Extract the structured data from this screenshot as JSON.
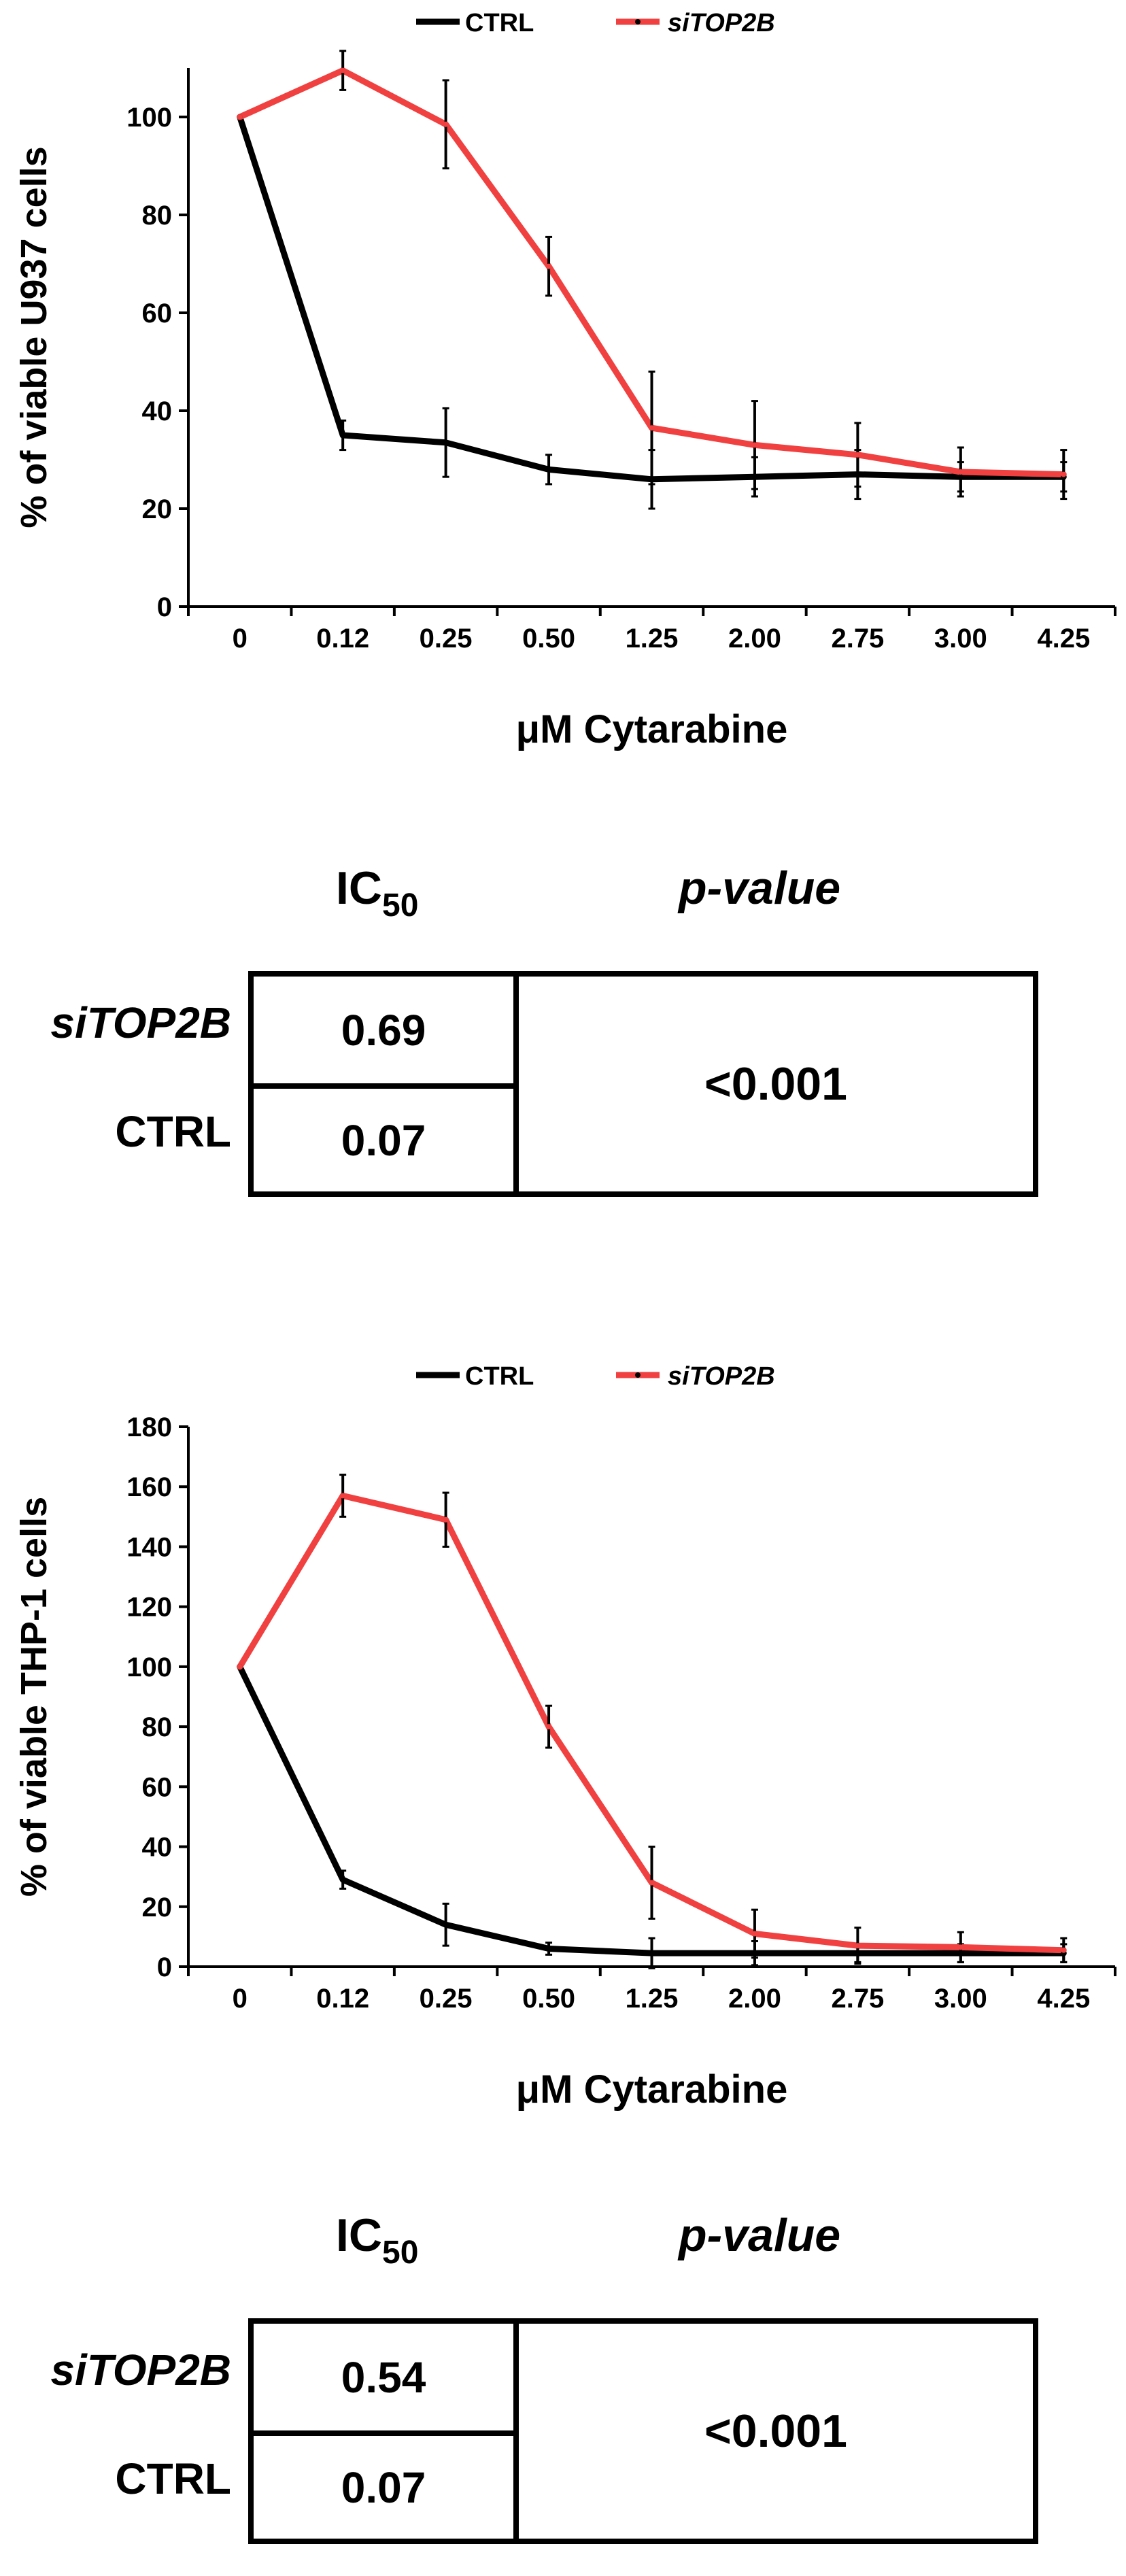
{
  "chart_data": [
    {
      "type": "line",
      "ylabel": "% of viable U937 cells",
      "xlabel": "μM Cytarabine",
      "categories": [
        "0",
        "0.12",
        "0.25",
        "0.50",
        "1.25",
        "2.00",
        "2.75",
        "3.00",
        "4.25"
      ],
      "ylim": [
        0,
        110
      ],
      "yticks": [
        0,
        20,
        40,
        60,
        80,
        100
      ],
      "grid": false,
      "legend_position": "top",
      "series": [
        {
          "name": "CTRL",
          "color": "#000000",
          "values": [
            100,
            35,
            33.5,
            28,
            26,
            26.5,
            27,
            26.5,
            26.5
          ],
          "errors": [
            0,
            3,
            7,
            3,
            6,
            4,
            5,
            3,
            3
          ]
        },
        {
          "name": "siTOP2B",
          "color": "#f04040",
          "values": [
            100,
            109.5,
            98.5,
            69.5,
            36.5,
            33,
            31,
            27.5,
            27
          ],
          "errors": [
            0,
            4,
            9,
            6,
            11.5,
            9,
            6.5,
            5,
            5
          ]
        }
      ]
    },
    {
      "type": "line",
      "ylabel": "% of viable THP-1 cells",
      "xlabel": "μM Cytarabine",
      "categories": [
        "0",
        "0.12",
        "0.25",
        "0.50",
        "1.25",
        "2.00",
        "2.75",
        "3.00",
        "4.25"
      ],
      "ylim": [
        0,
        180
      ],
      "yticks": [
        0,
        20,
        40,
        60,
        80,
        100,
        120,
        140,
        160,
        180
      ],
      "grid": false,
      "legend_position": "top",
      "series": [
        {
          "name": "CTRL",
          "color": "#000000",
          "values": [
            100,
            29,
            14,
            6,
            4.5,
            4.5,
            4.5,
            4.5,
            4.5
          ],
          "errors": [
            0,
            3,
            7,
            2,
            5,
            4,
            3,
            3,
            3
          ]
        },
        {
          "name": "siTOP2B",
          "color": "#f04040",
          "values": [
            100,
            157,
            149,
            80,
            28,
            11,
            7,
            6.5,
            5.5
          ],
          "errors": [
            0,
            7,
            9,
            7,
            12,
            8,
            6,
            5,
            4
          ]
        }
      ]
    }
  ],
  "tables": [
    {
      "ic_label": "IC",
      "ic_subscript": "50",
      "p_header": "p-value",
      "rows": [
        {
          "label": "siTOP2B",
          "value": "0.69"
        },
        {
          "label": "CTRL",
          "value": "0.07"
        }
      ],
      "p_value": "<0.001"
    },
    {
      "ic_label": "IC",
      "ic_subscript": "50",
      "p_header": "p-value",
      "rows": [
        {
          "label": "siTOP2B",
          "value": "0.54"
        },
        {
          "label": "CTRL",
          "value": "0.07"
        }
      ],
      "p_value": "<0.001"
    }
  ]
}
